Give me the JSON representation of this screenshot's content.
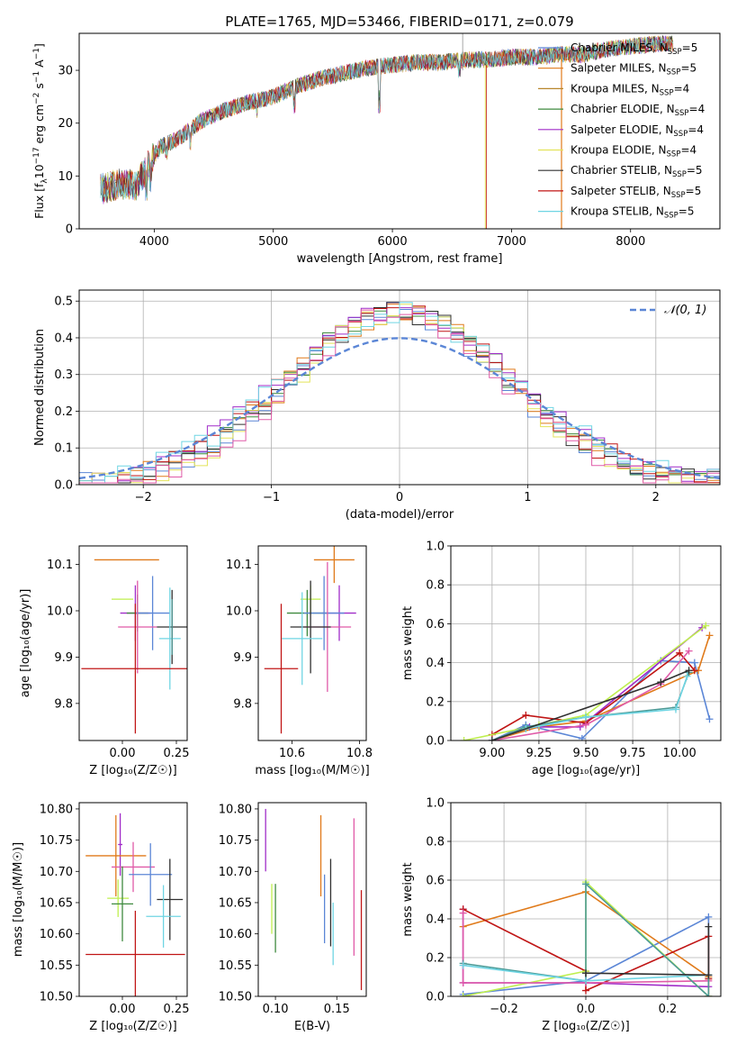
{
  "figure_title": "PLATE=1765, MJD=53466, FIBERID=0171, z=0.079",
  "colors": {
    "Chabrier MILES": "#5b86d6",
    "Salpeter MILES": "#e07a1a",
    "Kroupa MILES": "#b8862b",
    "Chabrier ELODIE": "#3f8a3f",
    "Salpeter ELODIE": "#a02cc8",
    "Kroupa ELODIE": "#e3e35a",
    "Chabrier STELIB": "#303030",
    "Salpeter STELIB": "#c01515",
    "Kroupa STELIB": "#6fd5e3",
    "pink": "#e05aa8",
    "lime": "#bfef4f",
    "teal": "#4c9a96"
  },
  "chart_data": [
    {
      "id": "spectrum",
      "type": "line",
      "title": "PLATE=1765, MJD=53466, FIBERID=0171, z=0.079",
      "xlabel": "wavelength [Angstrom, rest frame]",
      "ylabel_parts": [
        "Flux [f",
        "λ",
        "10",
        "−17",
        " erg cm",
        "−2",
        " s",
        "−1",
        " A",
        "−1",
        "]"
      ],
      "xlim": [
        3370,
        8750
      ],
      "ylim": [
        0,
        37
      ],
      "xticks": [
        4000,
        5000,
        6000,
        7000,
        8000
      ],
      "yticks": [
        0,
        10,
        20,
        30
      ],
      "grid": false,
      "legend_position": "upper right",
      "continuum": [
        [
          3550,
          7.5
        ],
        [
          3700,
          8.5
        ],
        [
          3850,
          8.2
        ],
        [
          3950,
          12
        ],
        [
          4050,
          15.5
        ],
        [
          4200,
          17
        ],
        [
          4400,
          20.5
        ],
        [
          4600,
          22.5
        ],
        [
          4800,
          24
        ],
        [
          5000,
          25
        ],
        [
          5200,
          27
        ],
        [
          5400,
          28.5
        ],
        [
          5600,
          29.5
        ],
        [
          5800,
          30.5
        ],
        [
          6000,
          31
        ],
        [
          6200,
          31.5
        ],
        [
          6400,
          31.5
        ],
        [
          6600,
          32
        ],
        [
          6800,
          32
        ],
        [
          7000,
          32.5
        ],
        [
          7200,
          32.5
        ],
        [
          7400,
          33
        ],
        [
          7600,
          33
        ],
        [
          7800,
          34
        ],
        [
          8000,
          34.5
        ],
        [
          8200,
          35
        ],
        [
          8350,
          35
        ]
      ],
      "legend": [
        {
          "label": "Chabrier MILES",
          "nssp": "5"
        },
        {
          "label": "Salpeter MILES",
          "nssp": "5"
        },
        {
          "label": "Kroupa MILES",
          "nssp": "4"
        },
        {
          "label": "Chabrier ELODIE",
          "nssp": "4"
        },
        {
          "label": "Salpeter ELODIE",
          "nssp": "4"
        },
        {
          "label": "Kroupa ELODIE",
          "nssp": "4"
        },
        {
          "label": "Chabrier STELIB",
          "nssp": "5"
        },
        {
          "label": "Salpeter STELIB",
          "nssp": "5"
        },
        {
          "label": "Kroupa STELIB",
          "nssp": "5"
        }
      ]
    },
    {
      "id": "residuals",
      "type": "line",
      "xlabel": "(data-model)/error",
      "ylabel": "Normed distribution",
      "xlim": [
        -2.5,
        2.5
      ],
      "ylim": [
        0,
        0.53
      ],
      "xticks": [
        -2,
        -1,
        0,
        1,
        2
      ],
      "yticks": [
        0.0,
        0.1,
        0.2,
        0.3,
        0.4,
        0.5
      ],
      "grid": true,
      "legend_position": "upper right",
      "normal_curve": {
        "label": "𝒩(0, 1)",
        "mu": 0,
        "sigma": 1
      },
      "bin_width": 0.1,
      "series_count": 9
    },
    {
      "id": "age_vs_Z",
      "type": "scatter",
      "xlabel": "Z [log₁₀(Z/Z☉)]",
      "ylabel": "age  [log₁₀(age/yr)]",
      "xlim": [
        -0.2,
        0.3
      ],
      "ylim": [
        9.72,
        10.14
      ],
      "xticks": [
        0.0,
        0.25
      ],
      "yticks": [
        9.8,
        9.9,
        10.0,
        10.1
      ],
      "points": [
        {
          "x": 0.02,
          "y": 10.11,
          "xerr": 0.15,
          "yerr": 0.0,
          "color": "#e07a1a"
        },
        {
          "x": 0.0,
          "y": 10.025,
          "xerr": 0.05,
          "yerr": 0.0,
          "color": "#bfef4f"
        },
        {
          "x": 0.06,
          "y": 9.995,
          "xerr": 0.07,
          "yerr": 0.06,
          "color": "#a02cc8"
        },
        {
          "x": 0.07,
          "y": 9.995,
          "xerr": 0.05,
          "yerr": 0.04,
          "color": "#3f8a3f"
        },
        {
          "x": 0.14,
          "y": 9.995,
          "xerr": 0.08,
          "yerr": 0.08,
          "color": "#5b86d6"
        },
        {
          "x": 0.07,
          "y": 9.965,
          "xerr": 0.09,
          "yerr": 0.1,
          "color": "#e05aa8"
        },
        {
          "x": 0.23,
          "y": 9.965,
          "xerr": 0.07,
          "yerr": 0.08,
          "color": "#303030"
        },
        {
          "x": 0.22,
          "y": 9.94,
          "xerr": 0.05,
          "yerr": 0.11,
          "color": "#6fd5e3"
        },
        {
          "x": 0.06,
          "y": 9.875,
          "xerr": 0.25,
          "yerr": 0.14,
          "color": "#c01515"
        },
        {
          "x": 0.23,
          "y": 9.965,
          "xerr": 0.0,
          "yerr": 0.06,
          "color": "#4c9a96"
        }
      ]
    },
    {
      "id": "age_vs_mass",
      "type": "scatter",
      "xlabel": "mass [log₁₀(M/M☉)]",
      "ylabel": "",
      "xlim": [
        10.5,
        10.82
      ],
      "ylim": [
        9.72,
        10.14
      ],
      "xticks": [
        10.6,
        10.8
      ],
      "yticks": [
        9.8,
        9.9,
        10.0,
        10.1
      ],
      "points": [
        {
          "x": 10.725,
          "y": 10.11,
          "xerr": 0.06,
          "yerr": 0.05,
          "color": "#e07a1a"
        },
        {
          "x": 10.655,
          "y": 10.025,
          "xerr": 0.03,
          "yerr": 0.03,
          "color": "#bfef4f"
        },
        {
          "x": 10.74,
          "y": 9.995,
          "xerr": 0.05,
          "yerr": 0.06,
          "color": "#a02cc8"
        },
        {
          "x": 10.645,
          "y": 9.995,
          "xerr": 0.06,
          "yerr": 0.05,
          "color": "#3f8a3f"
        },
        {
          "x": 10.695,
          "y": 9.995,
          "xerr": 0.06,
          "yerr": 0.08,
          "color": "#5b86d6"
        },
        {
          "x": 10.705,
          "y": 9.965,
          "xerr": 0.07,
          "yerr": 0.14,
          "color": "#e05aa8"
        },
        {
          "x": 10.655,
          "y": 9.965,
          "xerr": 0.06,
          "yerr": 0.1,
          "color": "#303030"
        },
        {
          "x": 10.63,
          "y": 9.94,
          "xerr": 0.06,
          "yerr": 0.1,
          "color": "#6fd5e3"
        },
        {
          "x": 10.568,
          "y": 9.875,
          "xerr": 0.05,
          "yerr": 0.14,
          "color": "#c01515"
        }
      ]
    },
    {
      "id": "weights_vs_age",
      "type": "line",
      "xlabel": "age  [log₁₀(age/yr)]",
      "ylabel": "mass weight",
      "xlim": [
        8.78,
        10.22
      ],
      "ylim": [
        0,
        1
      ],
      "xticks": [
        9.0,
        9.25,
        9.5,
        9.75,
        10.0
      ],
      "yticks": [
        0.0,
        0.2,
        0.4,
        0.6,
        0.8,
        1.0
      ],
      "grid": true,
      "series": [
        {
          "color": "#5b86d6",
          "x": [
            9.0,
            9.18,
            9.48,
            9.9,
            10.08,
            10.16
          ],
          "y": [
            0.0,
            0.08,
            0.01,
            0.41,
            0.4,
            0.11
          ]
        },
        {
          "color": "#e07a1a",
          "x": [
            9.0,
            9.25,
            9.5,
            10.1,
            10.16
          ],
          "y": [
            0.0,
            0.07,
            0.1,
            0.36,
            0.54
          ]
        },
        {
          "color": "#a02cc8",
          "x": [
            9.0,
            9.2,
            9.47,
            10.12
          ],
          "y": [
            0.0,
            0.07,
            0.07,
            0.58
          ]
        },
        {
          "color": "#c01515",
          "x": [
            9.0,
            9.18,
            9.5,
            10.0,
            10.08
          ],
          "y": [
            0.03,
            0.13,
            0.09,
            0.45,
            0.36
          ]
        },
        {
          "color": "#bfef4f",
          "x": [
            8.85,
            9.25,
            9.5,
            10.14
          ],
          "y": [
            0.0,
            0.08,
            0.13,
            0.59
          ]
        },
        {
          "color": "#e05aa8",
          "x": [
            9.0,
            9.5,
            9.9,
            10.05
          ],
          "y": [
            0.0,
            0.08,
            0.29,
            0.46
          ]
        },
        {
          "color": "#4c9a96",
          "x": [
            9.0,
            9.18,
            9.5,
            9.98,
            10.05
          ],
          "y": [
            0.0,
            0.07,
            0.12,
            0.17,
            0.35
          ]
        },
        {
          "color": "#6fd5e3",
          "x": [
            9.0,
            9.18,
            9.5,
            9.98,
            10.04
          ],
          "y": [
            0.0,
            0.06,
            0.12,
            0.16,
            0.33
          ]
        },
        {
          "color": "#303030",
          "x": [
            9.0,
            9.9,
            10.05
          ],
          "y": [
            0.0,
            0.3,
            0.36
          ]
        }
      ]
    },
    {
      "id": "mass_vs_Z",
      "type": "scatter",
      "xlabel": "Z [log₁₀(Z/Z☉)]",
      "ylabel": "mass [log₁₀(M/M☉)]",
      "xlim": [
        -0.2,
        0.3
      ],
      "ylim": [
        10.5,
        10.81
      ],
      "xticks": [
        0.0,
        0.25
      ],
      "yticks": [
        10.5,
        10.55,
        10.6,
        10.65,
        10.7,
        10.75,
        10.8
      ],
      "points": [
        {
          "x": -0.01,
          "y": 10.743,
          "xerr": 0.01,
          "yerr": 0.05,
          "color": "#a02cc8"
        },
        {
          "x": -0.03,
          "y": 10.725,
          "xerr": 0.14,
          "yerr": 0.065,
          "color": "#e07a1a"
        },
        {
          "x": 0.05,
          "y": 10.707,
          "xerr": 0.1,
          "yerr": 0.04,
          "color": "#e05aa8"
        },
        {
          "x": 0.13,
          "y": 10.695,
          "xerr": 0.1,
          "yerr": 0.05,
          "color": "#5b86d6"
        },
        {
          "x": -0.02,
          "y": 10.657,
          "xerr": 0.05,
          "yerr": 0.03,
          "color": "#bfef4f"
        },
        {
          "x": 0.0,
          "y": 10.648,
          "xerr": 0.05,
          "yerr": 0.06,
          "color": "#3f8a3f"
        },
        {
          "x": 0.22,
          "y": 10.655,
          "xerr": 0.06,
          "yerr": 0.065,
          "color": "#303030"
        },
        {
          "x": 0.19,
          "y": 10.628,
          "xerr": 0.08,
          "yerr": 0.05,
          "color": "#6fd5e3"
        },
        {
          "x": 0.06,
          "y": 10.567,
          "xerr": 0.23,
          "yerr": 0.07,
          "color": "#c01515"
        }
      ]
    },
    {
      "id": "mass_vs_ebv",
      "type": "scatter",
      "xlabel": "E(B-V)",
      "ylabel": "",
      "xlim": [
        0.086,
        0.174
      ],
      "ylim": [
        10.5,
        10.81
      ],
      "xticks": [
        0.1,
        0.15
      ],
      "yticks": [
        10.5,
        10.55,
        10.6,
        10.65,
        10.7,
        10.75,
        10.8
      ],
      "points": [
        {
          "x": 0.092,
          "y": 10.75,
          "xerr": 0.0,
          "yerr": 0.05,
          "color": "#a02cc8"
        },
        {
          "x": 0.097,
          "y": 10.64,
          "xerr": 0.0,
          "yerr": 0.04,
          "color": "#bfef4f"
        },
        {
          "x": 0.1,
          "y": 10.625,
          "xerr": 0.0,
          "yerr": 0.055,
          "color": "#3f8a3f"
        },
        {
          "x": 0.137,
          "y": 10.725,
          "xerr": 0.0,
          "yerr": 0.065,
          "color": "#e07a1a"
        },
        {
          "x": 0.14,
          "y": 10.64,
          "xerr": 0.0,
          "yerr": 0.055,
          "color": "#5b86d6"
        },
        {
          "x": 0.145,
          "y": 10.65,
          "xerr": 0.0,
          "yerr": 0.07,
          "color": "#303030"
        },
        {
          "x": 0.147,
          "y": 10.6,
          "xerr": 0.0,
          "yerr": 0.05,
          "color": "#6fd5e3"
        },
        {
          "x": 0.164,
          "y": 10.675,
          "xerr": 0.0,
          "yerr": 0.11,
          "color": "#e05aa8"
        },
        {
          "x": 0.17,
          "y": 10.59,
          "xerr": 0.0,
          "yerr": 0.08,
          "color": "#c01515"
        }
      ]
    },
    {
      "id": "weights_vs_Z",
      "type": "line",
      "xlabel": "Z [log₁₀(Z/Z☉)]",
      "ylabel": "mass weight",
      "xlim": [
        -0.33,
        0.33
      ],
      "ylim": [
        0,
        1
      ],
      "xticks": [
        -0.2,
        0.0,
        0.2
      ],
      "yticks": [
        0.0,
        0.2,
        0.4,
        0.6,
        0.8,
        1.0
      ],
      "grid": true,
      "series": [
        {
          "color": "#5b86d6",
          "x": [
            -0.3,
            0.0,
            0.3,
            0.3
          ],
          "y": [
            0.01,
            0.08,
            0.41,
            0.1
          ]
        },
        {
          "color": "#e07a1a",
          "x": [
            -0.3,
            0.0,
            0.3,
            0.3
          ],
          "y": [
            0.36,
            0.54,
            0.1,
            0.0
          ]
        },
        {
          "color": "#a02cc8",
          "x": [
            -0.3,
            -0.3,
            0.0,
            0.3
          ],
          "y": [
            0.45,
            0.07,
            0.07,
            0.05
          ]
        },
        {
          "color": "#c01515",
          "x": [
            -0.3,
            0.0,
            0.0,
            0.3,
            0.3
          ],
          "y": [
            0.45,
            0.13,
            0.03,
            0.31,
            0.09
          ]
        },
        {
          "color": "#bfef4f",
          "x": [
            -0.3,
            0.0,
            0.0,
            0.3
          ],
          "y": [
            0.0,
            0.13,
            0.59,
            0.0
          ]
        },
        {
          "color": "#e05aa8",
          "x": [
            -0.3,
            -0.3,
            0.0,
            0.3
          ],
          "y": [
            0.43,
            0.07,
            0.07,
            0.08
          ]
        },
        {
          "color": "#4c9a96",
          "x": [
            -0.3,
            0.0,
            0.0,
            0.3,
            0.3
          ],
          "y": [
            0.17,
            0.08,
            0.58,
            0.0,
            0.11
          ]
        },
        {
          "color": "#6fd5e3",
          "x": [
            -0.3,
            0.0,
            0.3
          ],
          "y": [
            0.16,
            0.08,
            0.11
          ]
        },
        {
          "color": "#303030",
          "x": [
            0.0,
            0.3,
            0.3
          ],
          "y": [
            0.12,
            0.11,
            0.36
          ]
        }
      ]
    }
  ]
}
